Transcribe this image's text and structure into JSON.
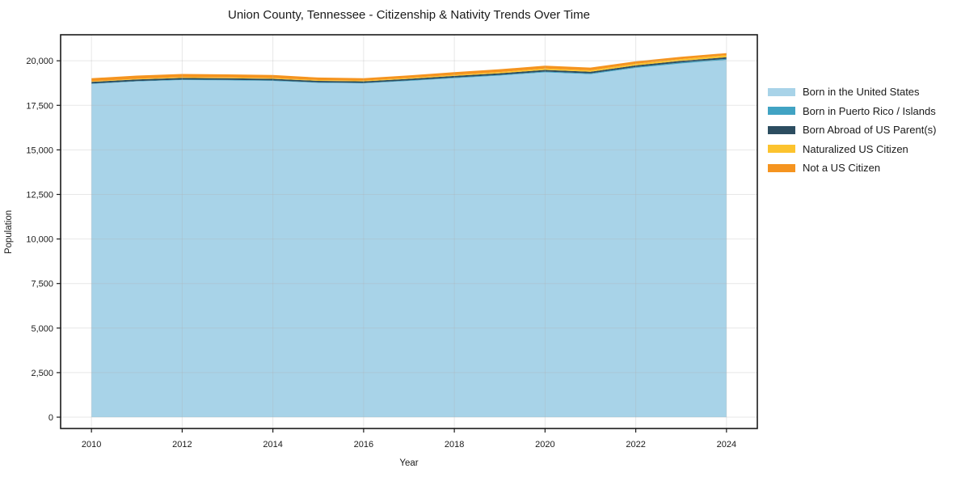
{
  "title": "Union County, Tennessee - Citizenship & Nativity Trends Over Time",
  "axes": {
    "xlabel": "Year",
    "ylabel": "Population",
    "x_ticks": [
      2010,
      2012,
      2014,
      2016,
      2018,
      2020,
      2022,
      2024
    ],
    "y_ticks": [
      0,
      2500,
      5000,
      7500,
      10000,
      12500,
      15000,
      17500,
      20000
    ],
    "y_tick_labels": [
      "0",
      "2,500",
      "5,000",
      "7,500",
      "10,000",
      "12,500",
      "15,000",
      "17,500",
      "20,000"
    ]
  },
  "chart_data": {
    "type": "area",
    "stacked": true,
    "title": "Union County, Tennessee - Citizenship & Nativity Trends Over Time",
    "xlabel": "Year",
    "ylabel": "Population",
    "x": [
      2010,
      2011,
      2012,
      2013,
      2014,
      2015,
      2016,
      2017,
      2018,
      2019,
      2020,
      2021,
      2022,
      2023,
      2024
    ],
    "series": [
      {
        "name": "Born in the United States",
        "color": "#a8d3e8",
        "values": [
          18700,
          18840,
          18920,
          18900,
          18870,
          18760,
          18730,
          18870,
          19020,
          19170,
          19350,
          19250,
          19600,
          19850,
          20050
        ]
      },
      {
        "name": "Born in Puerto Rico / Islands",
        "color": "#41a3c3",
        "values": [
          25,
          25,
          30,
          30,
          30,
          30,
          30,
          35,
          40,
          40,
          45,
          45,
          50,
          55,
          60
        ]
      },
      {
        "name": "Born Abroad of US Parent(s)",
        "color": "#2c4d60",
        "values": [
          90,
          90,
          90,
          90,
          90,
          85,
          85,
          85,
          90,
          90,
          90,
          90,
          90,
          90,
          90
        ]
      },
      {
        "name": "Naturalized US Citizen",
        "color": "#fcc32e",
        "values": [
          35,
          40,
          45,
          45,
          45,
          45,
          45,
          50,
          60,
          70,
          80,
          80,
          90,
          100,
          110
        ]
      },
      {
        "name": "Not a US Citizen",
        "color": "#f5941f",
        "values": [
          170,
          175,
          175,
          170,
          165,
          140,
          130,
          140,
          150,
          155,
          160,
          150,
          140,
          130,
          120
        ]
      }
    ],
    "xlim": [
      2009.32,
      2024.68
    ],
    "ylim": [
      -635,
      21460
    ],
    "grid": true,
    "legend_position": "right"
  },
  "style_colors": {
    "grid": "#b0b0b0",
    "spine": "#1a1a1a",
    "tick": "#1a1a1a",
    "background": "#ffffff"
  }
}
